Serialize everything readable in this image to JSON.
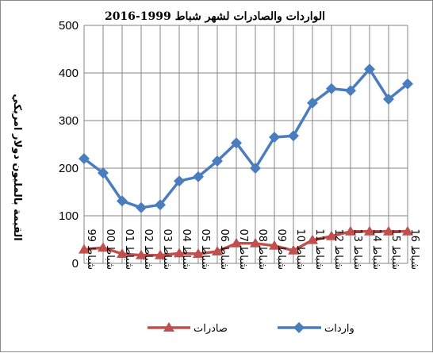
{
  "chart_data": {
    "type": "line",
    "title": "الواردات والصادرات لشهر شباط 1999-2016",
    "ylabel": "القيمة بالمليون دولار امريكي",
    "xlabel": "",
    "ylim": [
      0,
      500
    ],
    "yticks": [
      0,
      100,
      200,
      300,
      400,
      500
    ],
    "grid": true,
    "legend_position": "bottom",
    "categories": [
      "شباط 99",
      "شباط 00",
      "شباط 01",
      "شباط 02",
      "شباط 03",
      "شباط 04",
      "شباط 05",
      "شباط 06",
      "شباط 07",
      "شباط 08",
      "شباط 09",
      "شباط 10",
      "شباط 11",
      "شباط 12",
      "شباط 13",
      "شباط 14",
      "شباط 15",
      "شباط 16"
    ],
    "series": [
      {
        "name": "واردات",
        "color": "#4a7dbe",
        "marker": "diamond",
        "values": [
          220,
          190,
          131,
          117,
          123,
          173,
          182,
          215,
          253,
          200,
          265,
          268,
          337,
          367,
          363,
          408,
          345,
          377
        ]
      },
      {
        "name": "صادرات",
        "color": "#c0504d",
        "marker": "triangle",
        "values": [
          29,
          33,
          20,
          17,
          17,
          21,
          20,
          25,
          42,
          42,
          37,
          27,
          49,
          57,
          67,
          67,
          67,
          67
        ]
      }
    ]
  }
}
